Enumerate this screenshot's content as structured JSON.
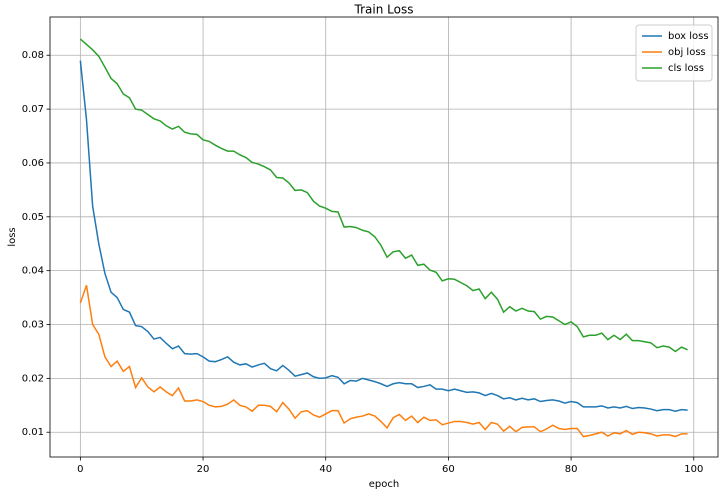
{
  "chart_data": {
    "type": "line",
    "title": "Train Loss",
    "x_label": "epoch",
    "y_label": "loss",
    "x": [
      0,
      1,
      2,
      3,
      4,
      5,
      6,
      7,
      8,
      9,
      10,
      11,
      12,
      13,
      14,
      15,
      16,
      17,
      18,
      19,
      20,
      21,
      22,
      23,
      24,
      25,
      26,
      27,
      28,
      29,
      30,
      31,
      32,
      33,
      34,
      35,
      36,
      37,
      38,
      39,
      40,
      41,
      42,
      43,
      44,
      45,
      46,
      47,
      48,
      49,
      50,
      51,
      52,
      53,
      54,
      55,
      56,
      57,
      58,
      59,
      60,
      61,
      62,
      63,
      64,
      65,
      66,
      67,
      68,
      69,
      70,
      71,
      72,
      73,
      74,
      75,
      76,
      77,
      78,
      79,
      80,
      81,
      82,
      83,
      84,
      85,
      86,
      87,
      88,
      89,
      90,
      91,
      92,
      93,
      94,
      95,
      96,
      97,
      98,
      99
    ],
    "series": [
      {
        "name": "box loss",
        "color": "#1f77b4",
        "values": [
          0.079,
          0.068,
          0.052,
          0.045,
          0.0395,
          0.036,
          0.035,
          0.0328,
          0.0323,
          0.0298,
          0.0296,
          0.0287,
          0.0273,
          0.0276,
          0.0265,
          0.0255,
          0.026,
          0.0246,
          0.0245,
          0.0246,
          0.024,
          0.0232,
          0.0231,
          0.0235,
          0.024,
          0.023,
          0.0225,
          0.0227,
          0.0221,
          0.0225,
          0.0228,
          0.0218,
          0.0214,
          0.0224,
          0.0215,
          0.0204,
          0.0207,
          0.021,
          0.0203,
          0.02,
          0.0201,
          0.0205,
          0.0202,
          0.019,
          0.0196,
          0.0195,
          0.02,
          0.0197,
          0.0194,
          0.019,
          0.0185,
          0.019,
          0.0192,
          0.019,
          0.019,
          0.0183,
          0.0185,
          0.0188,
          0.018,
          0.018,
          0.0177,
          0.018,
          0.0177,
          0.0174,
          0.0175,
          0.0173,
          0.0168,
          0.0172,
          0.0168,
          0.0162,
          0.0164,
          0.016,
          0.0163,
          0.016,
          0.0162,
          0.0157,
          0.0159,
          0.016,
          0.0158,
          0.0154,
          0.0157,
          0.0155,
          0.0147,
          0.0147,
          0.0147,
          0.0149,
          0.0145,
          0.0147,
          0.0145,
          0.0148,
          0.0144,
          0.0146,
          0.0145,
          0.0143,
          0.014,
          0.0142,
          0.0142,
          0.0139,
          0.0142,
          0.0141
        ]
      },
      {
        "name": "obj loss",
        "color": "#ff7f0e",
        "values": [
          0.034,
          0.0373,
          0.03,
          0.0282,
          0.024,
          0.0222,
          0.0232,
          0.0213,
          0.0222,
          0.0183,
          0.0201,
          0.0184,
          0.0175,
          0.0184,
          0.0175,
          0.0168,
          0.0182,
          0.0158,
          0.0158,
          0.016,
          0.0157,
          0.015,
          0.0147,
          0.0148,
          0.0152,
          0.016,
          0.015,
          0.0147,
          0.0139,
          0.015,
          0.015,
          0.0148,
          0.0138,
          0.0155,
          0.0143,
          0.0126,
          0.0138,
          0.014,
          0.0132,
          0.0128,
          0.0134,
          0.014,
          0.014,
          0.0117,
          0.0125,
          0.0128,
          0.013,
          0.0134,
          0.013,
          0.012,
          0.0108,
          0.0127,
          0.0133,
          0.0122,
          0.013,
          0.0118,
          0.0128,
          0.0122,
          0.0123,
          0.0114,
          0.0117,
          0.012,
          0.012,
          0.0118,
          0.0115,
          0.0118,
          0.0105,
          0.0118,
          0.0115,
          0.0102,
          0.0111,
          0.0101,
          0.0109,
          0.011,
          0.011,
          0.0101,
          0.0106,
          0.0113,
          0.0107,
          0.0105,
          0.0107,
          0.0107,
          0.0092,
          0.0094,
          0.0097,
          0.01,
          0.0093,
          0.0099,
          0.0097,
          0.0103,
          0.0096,
          0.01,
          0.0099,
          0.0097,
          0.0093,
          0.0095,
          0.0095,
          0.0092,
          0.0097,
          0.0097
        ]
      },
      {
        "name": "cls loss",
        "color": "#2ca02c",
        "values": [
          0.083,
          0.082,
          0.081,
          0.0798,
          0.0778,
          0.0757,
          0.0747,
          0.0728,
          0.0721,
          0.07,
          0.0698,
          0.069,
          0.0682,
          0.0678,
          0.0669,
          0.0663,
          0.0668,
          0.0657,
          0.0654,
          0.0653,
          0.0643,
          0.064,
          0.0633,
          0.0627,
          0.0622,
          0.0622,
          0.0615,
          0.061,
          0.0601,
          0.0598,
          0.0593,
          0.0587,
          0.0573,
          0.0572,
          0.0563,
          0.0549,
          0.055,
          0.0545,
          0.0529,
          0.052,
          0.0516,
          0.051,
          0.0509,
          0.0481,
          0.0482,
          0.048,
          0.0475,
          0.0472,
          0.0463,
          0.0447,
          0.0425,
          0.0435,
          0.0437,
          0.0423,
          0.0429,
          0.041,
          0.0412,
          0.0401,
          0.0397,
          0.0381,
          0.0385,
          0.0384,
          0.0378,
          0.0372,
          0.0363,
          0.0366,
          0.0348,
          0.036,
          0.0347,
          0.0323,
          0.0333,
          0.0325,
          0.033,
          0.0325,
          0.0324,
          0.031,
          0.0315,
          0.0314,
          0.0307,
          0.03,
          0.0305,
          0.0296,
          0.0277,
          0.028,
          0.028,
          0.0284,
          0.0272,
          0.028,
          0.0272,
          0.0282,
          0.027,
          0.027,
          0.0268,
          0.0266,
          0.0257,
          0.026,
          0.0258,
          0.025,
          0.0258,
          0.0253
        ]
      }
    ],
    "xlim": [
      -4.95,
      103.95
    ],
    "xticks": [
      0,
      20,
      40,
      60,
      80,
      100
    ],
    "ylim": [
      0.0054,
      0.0871
    ],
    "yticks": [
      0.01,
      0.02,
      0.03,
      0.04,
      0.05,
      0.06,
      0.07,
      0.08
    ],
    "grid": true,
    "legend": "upper right"
  }
}
